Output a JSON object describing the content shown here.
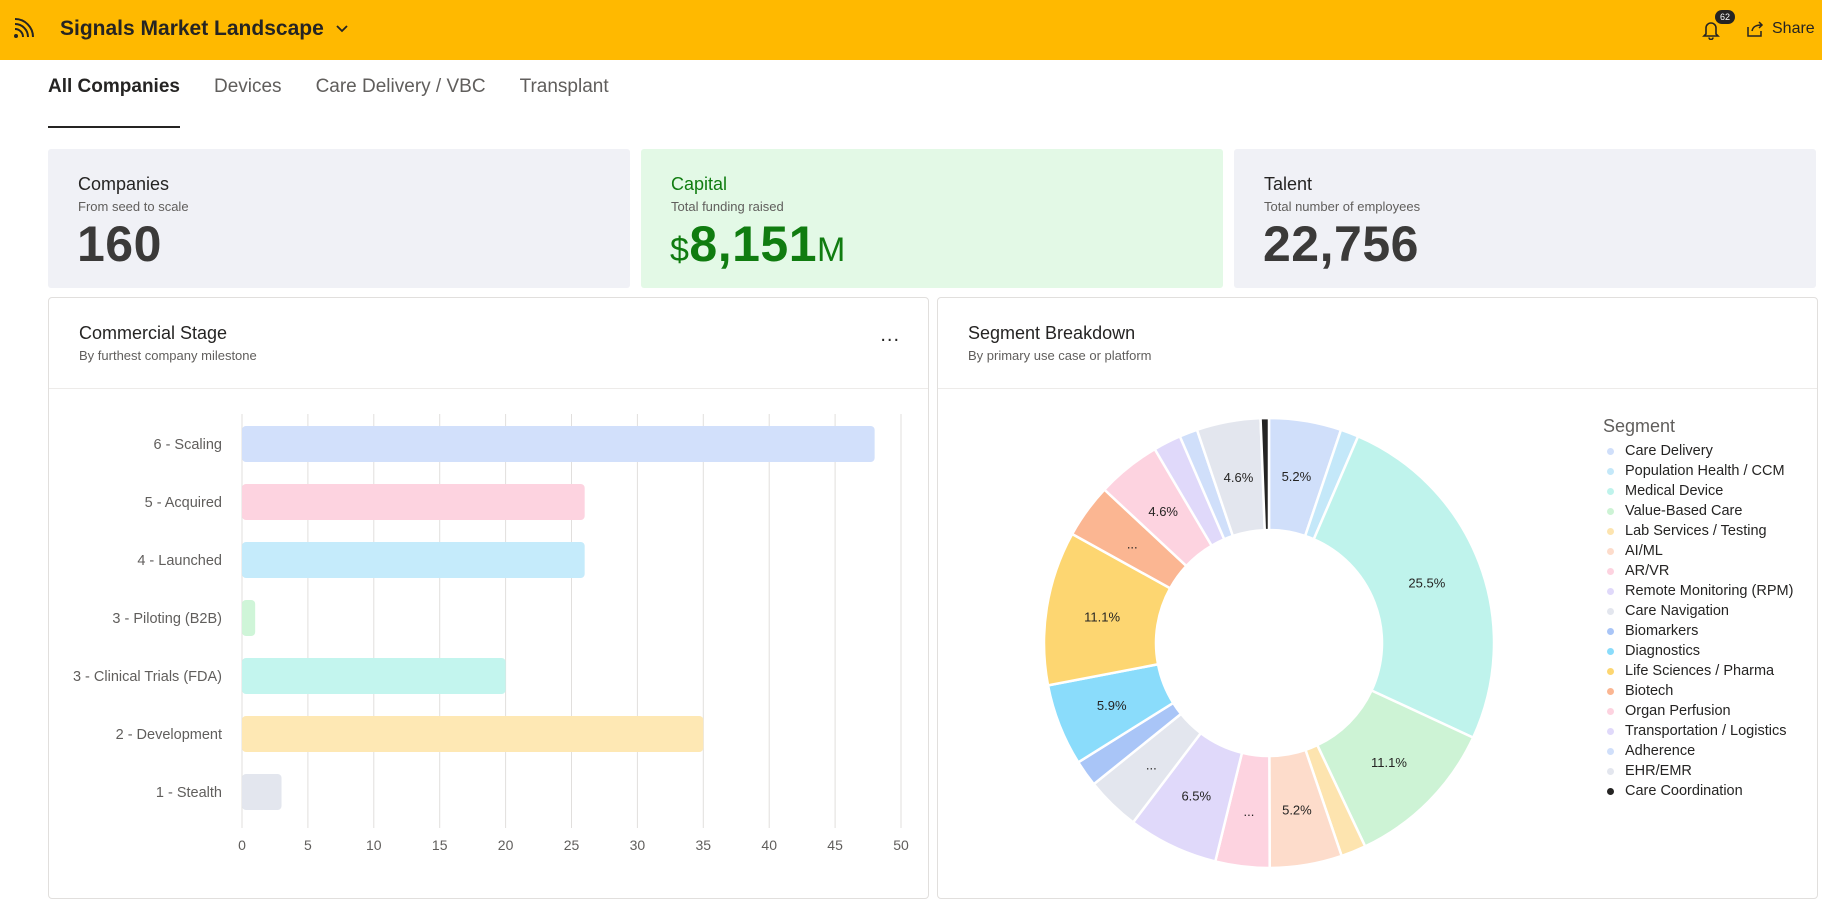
{
  "header": {
    "title": "Signals Market Landscape",
    "notification_count": "62",
    "share_label": "Share",
    "accent_color": "#ffb900"
  },
  "tabs": [
    {
      "label": "All Companies",
      "active": true
    },
    {
      "label": "Devices",
      "active": false
    },
    {
      "label": "Care Delivery / VBC",
      "active": false
    },
    {
      "label": "Transplant",
      "active": false
    }
  ],
  "kpis": {
    "companies": {
      "title": "Companies",
      "subtitle": "From seed to scale",
      "value": "160"
    },
    "capital": {
      "title": "Capital",
      "subtitle": "Total funding raised",
      "prefix": "$",
      "value": "8,151",
      "suffix": "M"
    },
    "talent": {
      "title": "Talent",
      "subtitle": "Total number of employees",
      "value": "22,756"
    }
  },
  "commercial": {
    "title": "Commercial Stage",
    "subtitle": "By furthest company milestone",
    "more_label": "..."
  },
  "segment": {
    "title": "Segment Breakdown",
    "subtitle": "By primary use case or platform",
    "legend_title": "Segment"
  },
  "chart_data": [
    {
      "type": "bar",
      "orientation": "horizontal",
      "categories": [
        "6 - Scaling",
        "5 - Acquired",
        "4 - Launched",
        "3 - Piloting (B2B)",
        "3 - Clinical Trials (FDA)",
        "2 - Development",
        "1 - Stealth"
      ],
      "values": [
        48,
        26,
        26,
        1,
        20,
        35,
        3
      ],
      "colors": [
        "#d2e0fb",
        "#fdd3e0",
        "#c5ebfb",
        "#cff5d8",
        "#c3f5ee",
        "#fee8b4",
        "#e3e6ee"
      ],
      "xticks": [
        "0",
        "5",
        "10",
        "15",
        "20",
        "25",
        "30",
        "35",
        "40",
        "45",
        "50"
      ],
      "xlim": [
        0,
        50
      ],
      "grid": true
    },
    {
      "type": "pie",
      "donut": true,
      "slices": [
        {
          "name": "Care Delivery",
          "value": 5.2,
          "label": "5.2%",
          "color": "#d0dffa"
        },
        {
          "name": "Population Health / CCM",
          "value": 1.3,
          "label": "",
          "color": "#c4e8f9"
        },
        {
          "name": "Medical Device",
          "value": 25.5,
          "label": "25.5%",
          "color": "#bff3ec"
        },
        {
          "name": "Value-Based Care",
          "value": 11.1,
          "label": "11.1%",
          "color": "#cdf3d5"
        },
        {
          "name": "Lab Services / Testing",
          "value": 1.8,
          "label": "",
          "color": "#fde4af"
        },
        {
          "name": "AI/ML",
          "value": 5.2,
          "label": "5.2%",
          "color": "#fddccb"
        },
        {
          "name": "AR/VR",
          "value": 3.9,
          "label": "...",
          "color": "#fdd3e0"
        },
        {
          "name": "Remote Monitoring (RPM)",
          "value": 6.5,
          "label": "6.5%",
          "color": "#e0d9fa"
        },
        {
          "name": "Care Navigation",
          "value": 3.9,
          "label": "...",
          "color": "#e3e6ee"
        },
        {
          "name": "Biomarkers",
          "value": 1.9,
          "label": "",
          "color": "#a9c5f7"
        },
        {
          "name": "Diagnostics",
          "value": 5.9,
          "label": "5.9%",
          "color": "#8adcfb"
        },
        {
          "name": "Life Sciences / Pharma",
          "value": 11.1,
          "label": "11.1%",
          "color": "#fdd671"
        },
        {
          "name": "Biotech",
          "value": 3.9,
          "label": "...",
          "color": "#fbb692"
        },
        {
          "name": "Organ Perfusion",
          "value": 4.6,
          "label": "4.6%",
          "color": "#fdd3e0"
        },
        {
          "name": "Transportation / Logistics",
          "value": 2.0,
          "label": "",
          "color": "#e0d9fa"
        },
        {
          "name": "Adherence",
          "value": 1.3,
          "label": "",
          "color": "#d0dffa"
        },
        {
          "name": "EHR/EMR",
          "value": 4.6,
          "label": "4.6%",
          "color": "#e3e6ee"
        },
        {
          "name": "Care Coordination",
          "value": 0.6,
          "label": "",
          "color": "#252423"
        }
      ]
    }
  ]
}
